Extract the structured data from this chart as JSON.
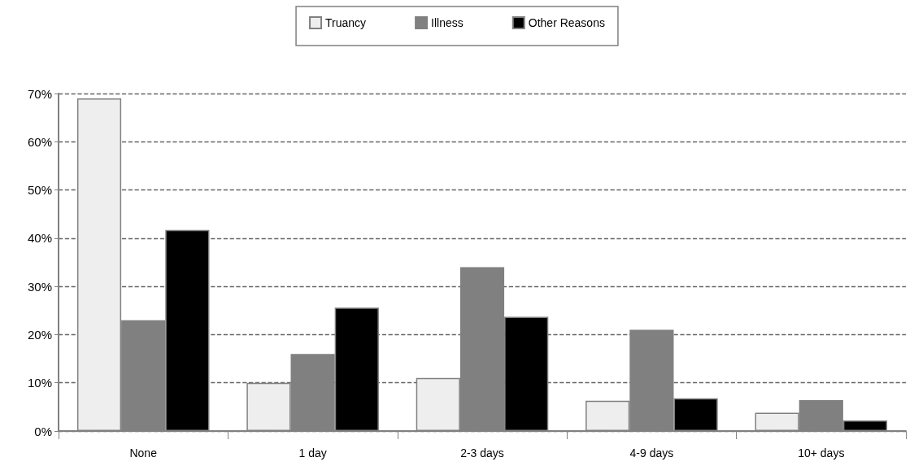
{
  "chart_data": {
    "type": "bar",
    "categories": [
      "None",
      "1 day",
      "2-3 days",
      "4-9 days",
      "10+ days"
    ],
    "series": [
      {
        "name": "Truancy",
        "color": "#eeeeee",
        "values": [
          69,
          10,
          11,
          6.3,
          3.8
        ]
      },
      {
        "name": "Illness",
        "color": "#808080",
        "values": [
          23,
          16,
          34,
          21,
          6.4
        ]
      },
      {
        "name": "Other Reasons",
        "color": "#000000",
        "values": [
          41.7,
          25.6,
          23.7,
          6.8,
          2.2
        ]
      }
    ],
    "ylim": [
      0,
      70
    ],
    "yticks": [
      {
        "value": 0,
        "label": "0%"
      },
      {
        "value": 10,
        "label": "10%"
      },
      {
        "value": 20,
        "label": "20%"
      },
      {
        "value": 30,
        "label": "30%"
      },
      {
        "value": 40,
        "label": "40%"
      },
      {
        "value": 50,
        "label": "50%"
      },
      {
        "value": 60,
        "label": "60%"
      },
      {
        "value": 70,
        "label": "70%"
      }
    ],
    "grid": "y",
    "legend": "top"
  }
}
